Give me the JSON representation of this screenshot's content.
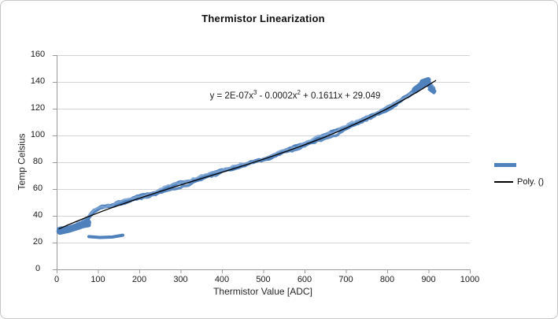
{
  "chart_data": {
    "type": "scatter",
    "title": "Thermistor Linearization",
    "xlabel": "Thermistor Value [ADC]",
    "ylabel": "Temp Celsius",
    "xlim": [
      0,
      1000
    ],
    "ylim": [
      0,
      160
    ],
    "x_ticks": [
      0,
      100,
      200,
      300,
      400,
      500,
      600,
      700,
      800,
      900,
      1000
    ],
    "y_ticks": [
      0,
      20,
      40,
      60,
      80,
      100,
      120,
      140,
      160
    ],
    "grid": "horizontal-major",
    "legend_position": "right",
    "colors": {
      "series": "#4f81bd",
      "series_edge": "#7ea6d4",
      "trendline": "#000000",
      "gridline": "#d4d4d4",
      "axis": "#9a9a9a",
      "text": "#1a1a1a"
    },
    "equation_label": {
      "full": "y = 2E-07x^3 - 0.0002x^2 + 0.1611x + 29.049",
      "p1": "y = 2E-07x",
      "sup1": "3",
      "p2": " - 0.0002x",
      "sup2": "2",
      "p3": " + 0.1611x + 29.049"
    },
    "legend": [
      {
        "marker": "thick-blue-line",
        "label": ""
      },
      {
        "marker": "thin-black-line",
        "label": "Poly. ()"
      }
    ],
    "trendline": {
      "kind": "polynomial",
      "order": 3,
      "points": [
        [
          5,
          30.2
        ],
        [
          25,
          32.9
        ],
        [
          50,
          36.1
        ],
        [
          75,
          39.2
        ],
        [
          100,
          42.2
        ],
        [
          125,
          45.1
        ],
        [
          150,
          47.8
        ],
        [
          175,
          50.5
        ],
        [
          200,
          53.1
        ],
        [
          250,
          58.2
        ],
        [
          300,
          63.0
        ],
        [
          350,
          67.8
        ],
        [
          400,
          72.5
        ],
        [
          450,
          77.3
        ],
        [
          500,
          82.3
        ],
        [
          550,
          87.5
        ],
        [
          600,
          93.0
        ],
        [
          650,
          98.9
        ],
        [
          700,
          105.4
        ],
        [
          750,
          112.4
        ],
        [
          800,
          120.0
        ],
        [
          850,
          128.4
        ],
        [
          880,
          133.9
        ],
        [
          900,
          137.7
        ],
        [
          918,
          141.2
        ]
      ]
    },
    "series": {
      "name": "",
      "style": "thick-noisy-band",
      "band_points": [
        [
          5,
          29.5
        ],
        [
          15,
          30
        ],
        [
          30,
          31
        ],
        [
          45,
          33
        ],
        [
          60,
          35.5
        ],
        [
          75,
          38.5
        ],
        [
          90,
          44
        ],
        [
          105,
          46.5
        ],
        [
          120,
          47.5
        ],
        [
          135,
          48.5
        ],
        [
          150,
          50
        ],
        [
          165,
          51
        ],
        [
          180,
          52
        ],
        [
          200,
          54
        ],
        [
          220,
          55.5
        ],
        [
          240,
          57
        ],
        [
          260,
          59
        ],
        [
          280,
          61.5
        ],
        [
          300,
          63.5
        ],
        [
          320,
          65
        ],
        [
          340,
          67
        ],
        [
          360,
          69.5
        ],
        [
          380,
          71.5
        ],
        [
          400,
          74
        ],
        [
          420,
          76
        ],
        [
          440,
          77.5
        ],
        [
          460,
          79
        ],
        [
          480,
          81
        ],
        [
          500,
          82.5
        ],
        [
          520,
          84.5
        ],
        [
          540,
          87
        ],
        [
          560,
          89
        ],
        [
          580,
          91
        ],
        [
          600,
          93.5
        ],
        [
          620,
          95.5
        ],
        [
          640,
          98
        ],
        [
          660,
          100.5
        ],
        [
          680,
          103
        ],
        [
          700,
          106
        ],
        [
          720,
          108.5
        ],
        [
          740,
          111.5
        ],
        [
          760,
          114.5
        ],
        [
          780,
          117.5
        ],
        [
          800,
          120.5
        ],
        [
          820,
          124
        ],
        [
          840,
          128
        ],
        [
          855,
          131
        ],
        [
          870,
          134.5
        ],
        [
          882,
          137.5
        ],
        [
          892,
          139.5
        ],
        [
          900,
          140
        ],
        [
          906,
          137.5
        ],
        [
          912,
          134.5
        ]
      ],
      "artifact_strokes": [
        {
          "w": 9,
          "pts": [
            [
              8,
              28.5
            ],
            [
              30,
              30
            ],
            [
              55,
              32.5
            ],
            [
              75,
              35
            ]
          ]
        },
        {
          "w": 5,
          "pts": [
            [
              8,
              30
            ],
            [
              40,
              30.8
            ],
            [
              78,
              33
            ]
          ]
        },
        {
          "w": 4,
          "pts": [
            [
              78,
              24.5
            ],
            [
              105,
              23.8
            ],
            [
              135,
              24.2
            ],
            [
              160,
              25.5
            ]
          ]
        },
        {
          "w": 9,
          "pts": [
            [
              868,
              134
            ],
            [
              885,
              138
            ],
            [
              897,
              140.5
            ]
          ]
        },
        {
          "w": 7,
          "pts": [
            [
              885,
              140
            ],
            [
              899,
              141.5
            ]
          ]
        },
        {
          "w": 5,
          "pts": [
            [
              896,
              138
            ],
            [
              906,
              136
            ],
            [
              914,
              133
            ]
          ]
        },
        {
          "w": 4,
          "pts": [
            [
              902,
              134.5
            ],
            [
              913,
              132
            ]
          ]
        }
      ]
    }
  }
}
